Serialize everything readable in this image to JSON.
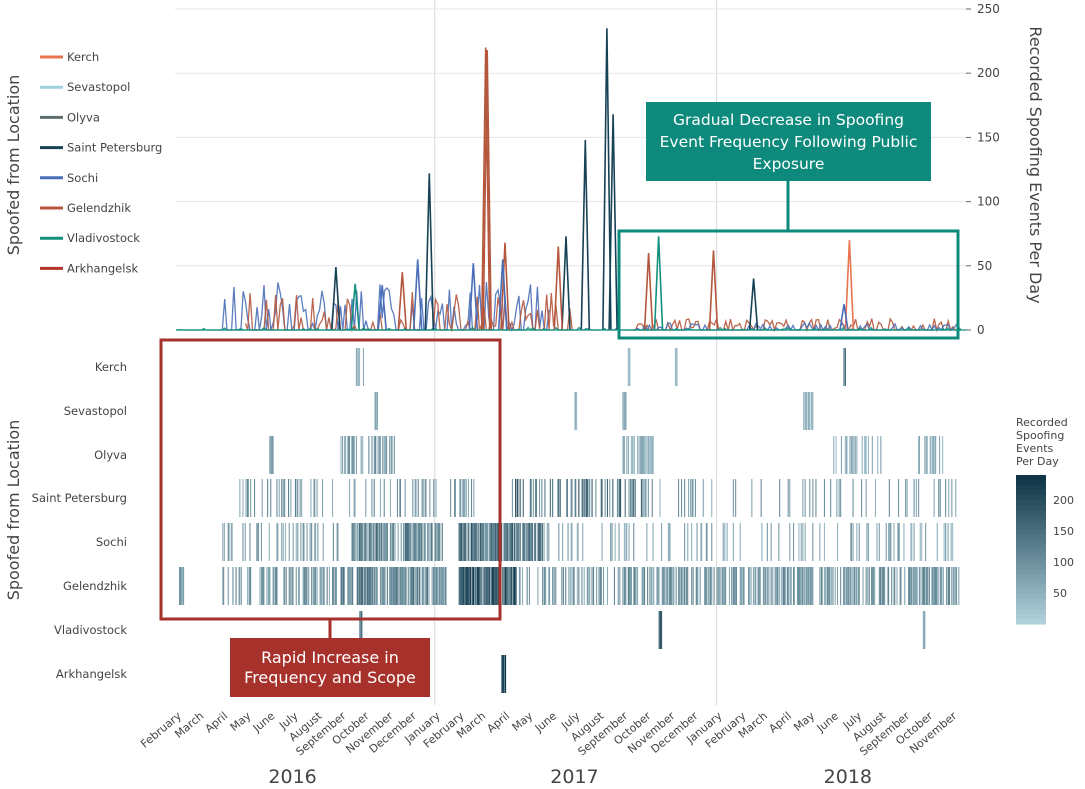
{
  "chart_data": [
    {
      "type": "line",
      "ylabel": "Recorded Spoofing Events Per Day",
      "left_label": "Spoofed from Location",
      "ylim": [
        0,
        250
      ],
      "yticks": [
        0,
        50,
        100,
        150,
        200,
        250
      ],
      "legend_position": "left",
      "series": [
        {
          "name": "Kerch",
          "color": "#e8734f"
        },
        {
          "name": "Sevastopol",
          "color": "#9fcfdc"
        },
        {
          "name": "Olyva",
          "color": "#5f6f6f"
        },
        {
          "name": "Saint Petersburg",
          "color": "#174155"
        },
        {
          "name": "Sochi",
          "color": "#4a6fb8"
        },
        {
          "name": "Gelendzhik",
          "color": "#b5573c"
        },
        {
          "name": "Vladivostock",
          "color": "#14907f"
        },
        {
          "name": "Arkhangelsk",
          "color": "#b5332c"
        }
      ],
      "spikes": [
        {
          "series": "Gelendzhik",
          "date": "2017-03-08",
          "value": 220
        },
        {
          "series": "Gelendzhik",
          "date": "2017-03-10",
          "value": 218
        },
        {
          "series": "Saint Petersburg",
          "date": "2017-08-12",
          "value": 235
        },
        {
          "series": "Saint Petersburg",
          "date": "2017-08-20",
          "value": 168
        },
        {
          "series": "Saint Petersburg",
          "date": "2017-07-15",
          "value": 148
        },
        {
          "series": "Saint Petersburg",
          "date": "2017-06-20",
          "value": 73
        },
        {
          "series": "Saint Petersburg",
          "date": "2016-12-25",
          "value": 122
        },
        {
          "series": "Saint Petersburg",
          "date": "2016-08-26",
          "value": 49
        },
        {
          "series": "Saint Petersburg",
          "date": "2018-02-18",
          "value": 40
        },
        {
          "series": "Gelendzhik",
          "date": "2017-04-02",
          "value": 68
        },
        {
          "series": "Gelendzhik",
          "date": "2017-06-10",
          "value": 65
        },
        {
          "series": "Gelendzhik",
          "date": "2017-10-05",
          "value": 60
        },
        {
          "series": "Gelendzhik",
          "date": "2017-12-28",
          "value": 62
        },
        {
          "series": "Gelendzhik",
          "date": "2016-11-20",
          "value": 45
        },
        {
          "series": "Sochi",
          "date": "2016-12-10",
          "value": 55
        },
        {
          "series": "Sochi",
          "date": "2017-02-20",
          "value": 52
        },
        {
          "series": "Sochi",
          "date": "2017-03-30",
          "value": 55
        },
        {
          "series": "Sochi",
          "date": "2016-10-25",
          "value": 35
        },
        {
          "series": "Vladivostock",
          "date": "2017-10-18",
          "value": 73
        },
        {
          "series": "Vladivostock",
          "date": "2016-09-20",
          "value": 36
        },
        {
          "series": "Kerch",
          "date": "2018-06-22",
          "value": 70
        },
        {
          "series": "Sochi",
          "date": "2018-06-15",
          "value": 20
        }
      ],
      "years": [
        "2016",
        "2017",
        "2018"
      ],
      "months": [
        "February",
        "March",
        "April",
        "May",
        "June",
        "July",
        "August",
        "September",
        "October",
        "November",
        "December",
        "January",
        "February",
        "March",
        "April",
        "May",
        "June",
        "July",
        "August",
        "September",
        "October",
        "November",
        "December",
        "January",
        "February",
        "March",
        "April",
        "May",
        "June",
        "July",
        "August",
        "September",
        "October",
        "November"
      ]
    },
    {
      "type": "heatmap",
      "ylabel": "Spoofed from Location",
      "rows": [
        "Kerch",
        "Sevastopol",
        "Olyva",
        "Saint Petersburg",
        "Sochi",
        "Gelendzhik",
        "Vladivostock",
        "Arkhangelsk"
      ],
      "colorbar": {
        "title": "Recorded Spoofing Events Per Day",
        "title_lines": [
          "Recorded",
          "Spoofing",
          "Events",
          "Per Day"
        ],
        "ticks": [
          50,
          100,
          150,
          200
        ],
        "range": [
          0,
          240
        ]
      }
    }
  ],
  "annotations": {
    "red_callout": "Rapid Increase in Frequency and Scope",
    "teal_callout": "Gradual Decrease in Spoofing Event Frequency Following Public Exposure"
  }
}
